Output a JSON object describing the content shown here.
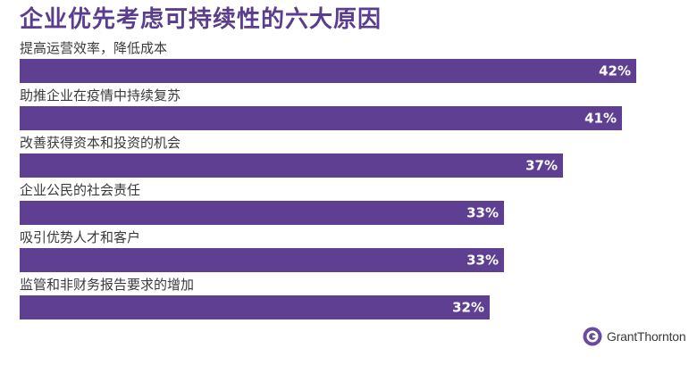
{
  "title": "企业优先考虑可持续性的六大原因",
  "brand": {
    "name": "GrantThornton",
    "color": "#6a4a9c"
  },
  "colors": {
    "bar": "#5f3f92",
    "title": "#5a3d8c",
    "value_label": "#ffffff"
  },
  "chart_data": {
    "type": "bar",
    "orientation": "horizontal",
    "title": "企业优先考虑可持续性的六大原因",
    "categories": [
      "提高运营效率，降低成本",
      "助推企业在疫情中持续复苏",
      "改善获得资本和投资的机会",
      "企业公民的社会责任",
      "吸引优势人才和客户",
      "监管和非财务报告要求的增加"
    ],
    "values": [
      42,
      41,
      37,
      33,
      33,
      32
    ],
    "value_labels": [
      "42%",
      "41%",
      "37%",
      "33%",
      "33%",
      "32%"
    ],
    "unit": "%",
    "xlim": [
      0,
      42
    ],
    "grid": false,
    "legend": "none"
  }
}
